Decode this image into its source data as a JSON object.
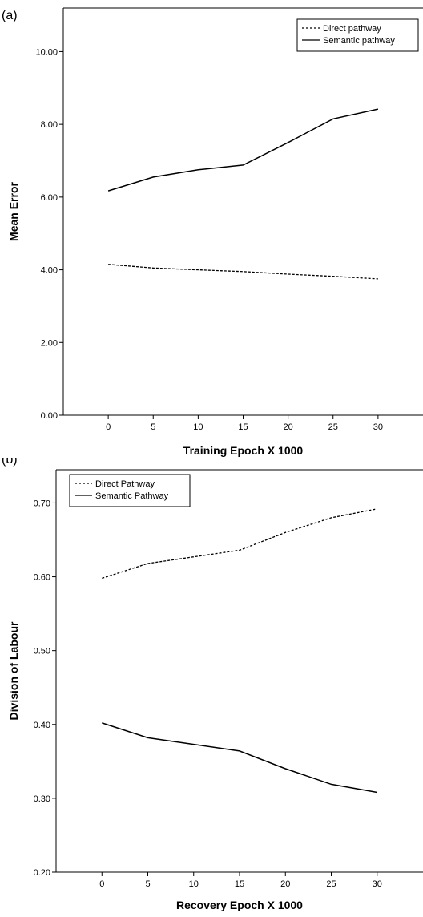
{
  "chart_data": [
    {
      "type": "line",
      "panel_label": "(a)",
      "title": "",
      "xlabel": "Training Epoch X 1000",
      "ylabel": "Mean Error",
      "x": [
        0,
        5,
        10,
        15,
        20,
        25,
        30
      ],
      "x_tick_labels": [
        "0",
        "5",
        "10",
        "15",
        "20",
        "25",
        "30"
      ],
      "xlim": [
        -5,
        35
      ],
      "ylim": [
        0,
        11.2
      ],
      "y_ticks": [
        0,
        2,
        4,
        6,
        8,
        10
      ],
      "y_tick_labels": [
        "0.00",
        "2.00",
        "4.00",
        "6.00",
        "8.00",
        "10.00"
      ],
      "grid": false,
      "legend_position": "top-right",
      "series": [
        {
          "name": "Direct pathway",
          "style": "dashed",
          "values": [
            4.15,
            4.05,
            4.0,
            3.95,
            3.88,
            3.82,
            3.75
          ]
        },
        {
          "name": "Semantic pathway",
          "style": "solid",
          "values": [
            6.17,
            6.55,
            6.75,
            6.88,
            7.5,
            8.15,
            8.42
          ]
        }
      ]
    },
    {
      "type": "line",
      "panel_label": "(b)",
      "title": "",
      "xlabel": "Recovery Epoch X 1000",
      "ylabel": "Division of Labour",
      "x": [
        0,
        5,
        10,
        15,
        20,
        25,
        30
      ],
      "x_tick_labels": [
        "0",
        "5",
        "10",
        "15",
        "20",
        "25",
        "30"
      ],
      "xlim": [
        -5,
        35
      ],
      "ylim": [
        0.2,
        0.745
      ],
      "y_ticks": [
        0.2,
        0.3,
        0.4,
        0.5,
        0.6,
        0.7
      ],
      "y_tick_labels": [
        "0.20",
        "0.30",
        "0.40",
        "0.50",
        "0.60",
        "0.70"
      ],
      "grid": false,
      "legend_position": "top-left",
      "series": [
        {
          "name": "Direct Pathway",
          "style": "dashed",
          "values": [
            0.598,
            0.618,
            0.627,
            0.636,
            0.66,
            0.68,
            0.692
          ]
        },
        {
          "name": "Semantic Pathway",
          "style": "solid",
          "values": [
            0.402,
            0.382,
            0.373,
            0.364,
            0.34,
            0.319,
            0.308
          ]
        }
      ]
    }
  ]
}
